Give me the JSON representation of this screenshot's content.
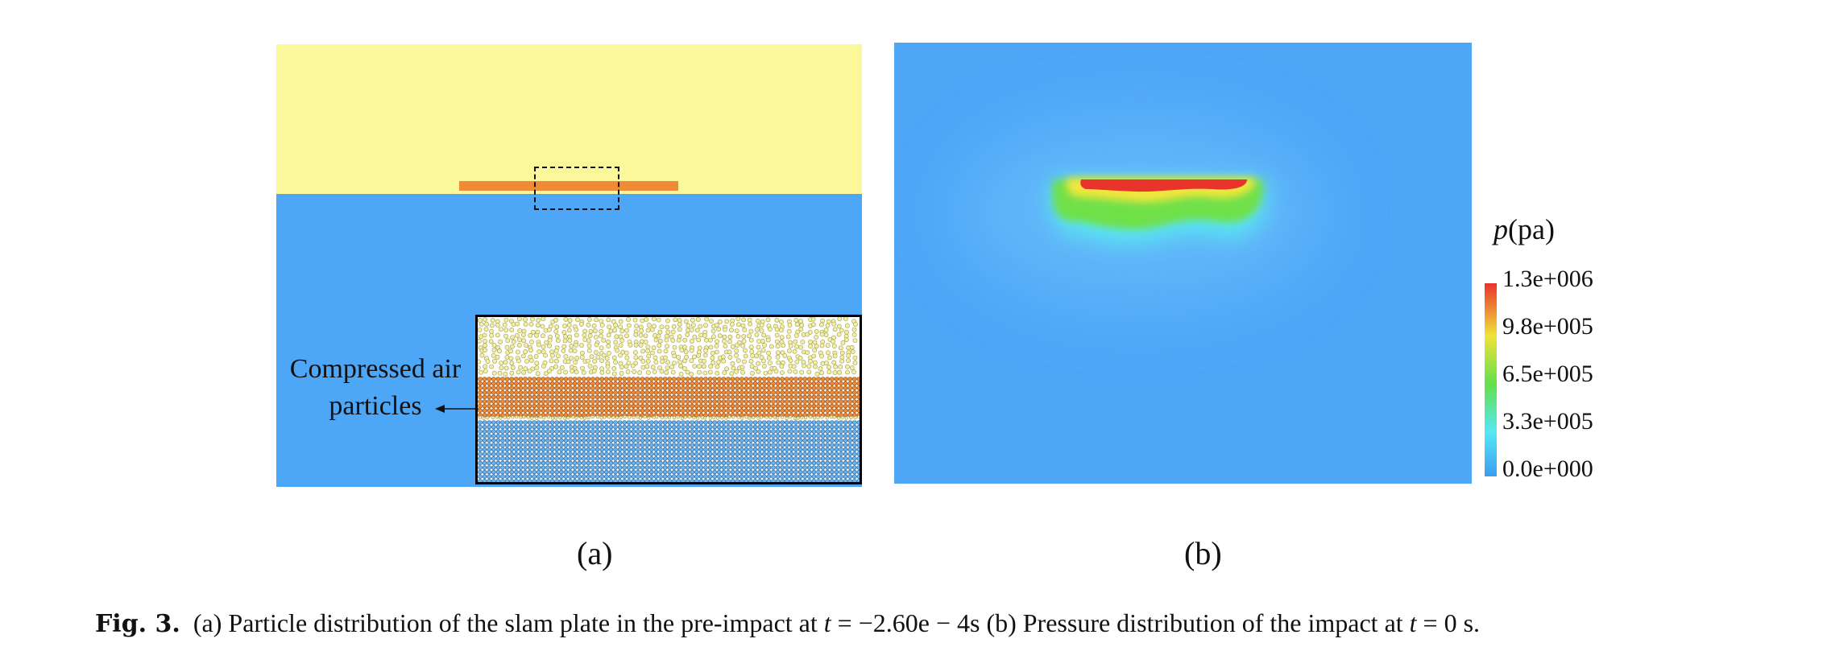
{
  "figure": {
    "panel_a": {
      "annotation_line1": "Compressed air",
      "annotation_line2": "particles",
      "label": "(a)"
    },
    "panel_b": {
      "legend_var": "p",
      "legend_unit": "(pa)",
      "legend_ticks": [
        "1.3e+006",
        "9.8e+005",
        "6.5e+005",
        "3.3e+005",
        "0.0e+000"
      ],
      "label": "(b)"
    },
    "colors": {
      "air": "#fbf79b",
      "water": "#4ea6f7",
      "plate": "#ef8a36",
      "high_pressure": "#e8342b"
    }
  },
  "caption": {
    "prefix": "Fig. 3.",
    "part1": "(a) Particle distribution of the slam plate in the pre-impact at",
    "var1": "t",
    "eq1": "= −2.60e − 4s (b) Pressure distribution of the impact at",
    "var2": "t",
    "eq2": "= 0  s."
  }
}
